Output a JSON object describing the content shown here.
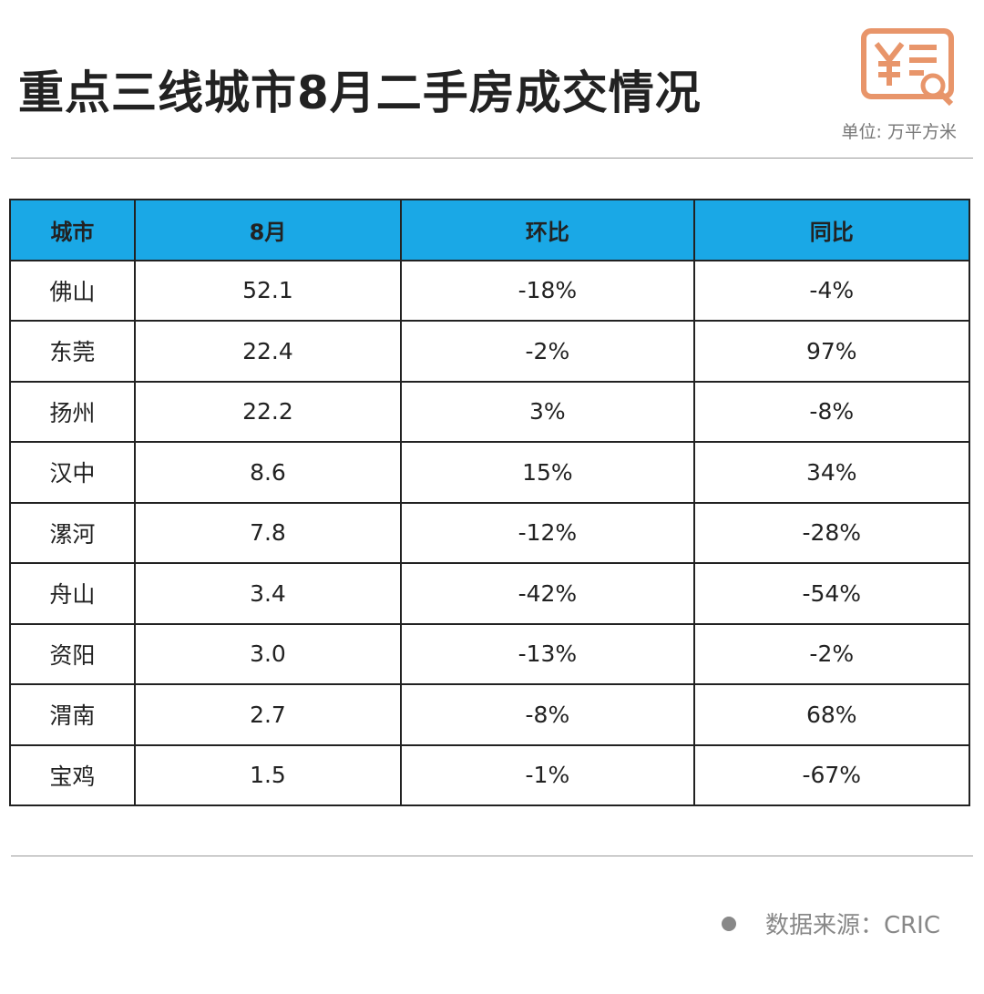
{
  "header": {
    "title": "重点三线城市8月二手房成交情况",
    "unit": "单位: 万平方米"
  },
  "table": {
    "columns": [
      "城市",
      "8月",
      "环比",
      "同比"
    ],
    "rows": [
      [
        "佛山",
        "52.1",
        "-18%",
        "-4%"
      ],
      [
        "东莞",
        "22.4",
        "-2%",
        "97%"
      ],
      [
        "扬州",
        "22.2",
        "3%",
        "-8%"
      ],
      [
        "汉中",
        "8.6",
        "15%",
        "34%"
      ],
      [
        "漯河",
        "7.8",
        "-12%",
        "-28%"
      ],
      [
        "舟山",
        "3.4",
        "-42%",
        "-54%"
      ],
      [
        "资阳",
        "3.0",
        "-13%",
        "-2%"
      ],
      [
        "渭南",
        "2.7",
        "-8%",
        "68%"
      ],
      [
        "宝鸡",
        "1.5",
        "-1%",
        "-67%"
      ]
    ]
  },
  "footer": {
    "source": "数据来源：CRIC"
  }
}
